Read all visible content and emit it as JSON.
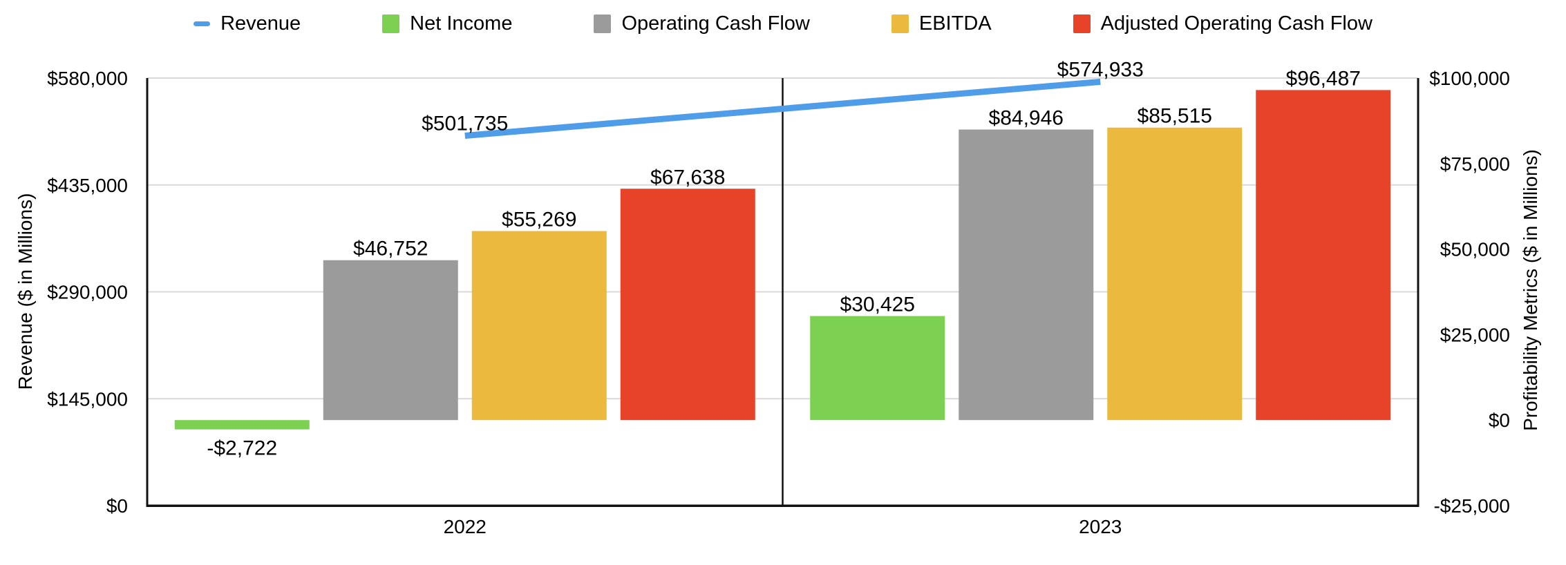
{
  "legend": {
    "position": "top",
    "items": [
      {
        "label": "Revenue",
        "color": "#4F9DE8",
        "marker": "line"
      },
      {
        "label": "Net Income",
        "color": "#7CD152",
        "marker": "square"
      },
      {
        "label": "Operating Cash Flow",
        "color": "#9B9B9B",
        "marker": "square"
      },
      {
        "label": "EBITDA",
        "color": "#ECB93F",
        "marker": "square"
      },
      {
        "label": "Adjusted Operating Cash Flow",
        "color": "#E74328",
        "marker": "square"
      }
    ]
  },
  "chart_data": {
    "type": "combo-bar-line",
    "categories": [
      "2022",
      "2023"
    ],
    "grid": "horizontal-left-axis-ticks",
    "legend_position": "top",
    "left_axis": {
      "title": "Revenue ($ in Millions)",
      "range": [
        0,
        580000
      ],
      "ticks": [
        {
          "value": 0,
          "label": "$0"
        },
        {
          "value": 145000,
          "label": "$145,000"
        },
        {
          "value": 290000,
          "label": "$290,000"
        },
        {
          "value": 435000,
          "label": "$435,000"
        },
        {
          "value": 580000,
          "label": "$580,000"
        }
      ]
    },
    "right_axis": {
      "title": "Profitability Metrics ($ in Millions)",
      "range": [
        -25000,
        100000
      ],
      "ticks": [
        {
          "value": -25000,
          "label": "-$25,000"
        },
        {
          "value": 0,
          "label": "$0"
        },
        {
          "value": 25000,
          "label": "$25,000"
        },
        {
          "value": 50000,
          "label": "$50,000"
        },
        {
          "value": 75000,
          "label": "$75,000"
        },
        {
          "value": 100000,
          "label": "$100,000"
        }
      ]
    },
    "series": [
      {
        "name": "Revenue",
        "type": "line",
        "axis": "left",
        "color": "#4F9DE8",
        "values": [
          501735,
          574933
        ],
        "data_labels": [
          "$501,735",
          "$574,933"
        ]
      },
      {
        "name": "Net Income",
        "type": "bar",
        "axis": "right",
        "color": "#7CD152",
        "values": [
          -2722,
          30425
        ],
        "data_labels": [
          "-$2,722",
          "$30,425"
        ]
      },
      {
        "name": "Operating Cash Flow",
        "type": "bar",
        "axis": "right",
        "color": "#9B9B9B",
        "values": [
          46752,
          84946
        ],
        "data_labels": [
          "$46,752",
          "$84,946"
        ]
      },
      {
        "name": "EBITDA",
        "type": "bar",
        "axis": "right",
        "color": "#ECB93F",
        "values": [
          55269,
          85515
        ],
        "data_labels": [
          "$55,269",
          "$85,515"
        ]
      },
      {
        "name": "Adjusted Operating Cash Flow",
        "type": "bar",
        "axis": "right",
        "color": "#E74328",
        "values": [
          67638,
          96487
        ],
        "data_labels": [
          "$67,638",
          "$96,487"
        ]
      }
    ],
    "colors": {
      "gridline": "#D9D9D9",
      "plot_border": "#111111",
      "text": "#000000"
    }
  }
}
